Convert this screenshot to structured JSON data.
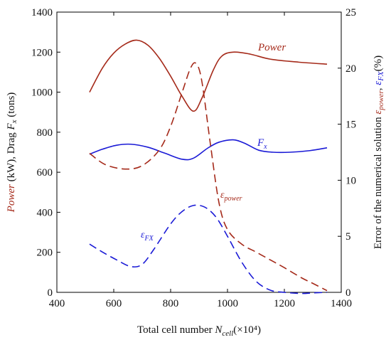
{
  "chart_data": {
    "type": "line",
    "xlabel": {
      "prefix": "Total cell number ",
      "var": "N",
      "sub": "cell",
      "suffix": "(×10⁴)"
    },
    "ylabel_left": {
      "p1": "Power",
      "p2": " (kW), Drag ",
      "p3": "F",
      "p4": "x",
      "p5": " (tons)"
    },
    "ylabel_right": {
      "p1": "Error of the numerical solution ",
      "p2": "ε",
      "p3": "power",
      "p4": ", ",
      "p5": "ε",
      "p6": "FX",
      "p7": "(%)"
    },
    "xlim": [
      400,
      1400
    ],
    "x_ticks": [
      400,
      600,
      800,
      1000,
      1200,
      1400
    ],
    "ylim_left": [
      0,
      1400
    ],
    "y_ticks_left": [
      0,
      200,
      400,
      600,
      800,
      1000,
      1200,
      1400
    ],
    "ylim_right": [
      0,
      25
    ],
    "y_ticks_right": [
      0,
      5,
      10,
      15,
      20,
      25
    ],
    "series": [
      {
        "name": "Power",
        "axis": "left",
        "style": "solid",
        "color": "#a52a1a",
        "points": [
          [
            515,
            1000
          ],
          [
            560,
            1120
          ],
          [
            600,
            1195
          ],
          [
            640,
            1240
          ],
          [
            680,
            1260
          ],
          [
            720,
            1235
          ],
          [
            760,
            1170
          ],
          [
            800,
            1080
          ],
          [
            840,
            980
          ],
          [
            880,
            905
          ],
          [
            910,
            970
          ],
          [
            950,
            1110
          ],
          [
            980,
            1180
          ],
          [
            1020,
            1200
          ],
          [
            1080,
            1190
          ],
          [
            1150,
            1165
          ],
          [
            1250,
            1150
          ],
          [
            1350,
            1140
          ]
        ]
      },
      {
        "name": "F",
        "sub": "x",
        "axis": "left",
        "style": "solid",
        "color": "#1a1ad6",
        "points": [
          [
            515,
            690
          ],
          [
            560,
            715
          ],
          [
            610,
            735
          ],
          [
            660,
            740
          ],
          [
            720,
            725
          ],
          [
            780,
            695
          ],
          [
            840,
            665
          ],
          [
            880,
            670
          ],
          [
            930,
            720
          ],
          [
            970,
            750
          ],
          [
            1020,
            762
          ],
          [
            1060,
            745
          ],
          [
            1110,
            710
          ],
          [
            1160,
            700
          ],
          [
            1220,
            700
          ],
          [
            1290,
            708
          ],
          [
            1350,
            722
          ]
        ]
      },
      {
        "name": "ε",
        "sub": "power",
        "axis": "right",
        "style": "dashed",
        "color": "#a52a1a",
        "points": [
          [
            515,
            12.4
          ],
          [
            570,
            11.4
          ],
          [
            640,
            11.0
          ],
          [
            700,
            11.3
          ],
          [
            760,
            12.7
          ],
          [
            800,
            14.8
          ],
          [
            840,
            17.8
          ],
          [
            870,
            20.0
          ],
          [
            890,
            20.4
          ],
          [
            910,
            18.8
          ],
          [
            940,
            13.2
          ],
          [
            970,
            8.0
          ],
          [
            1000,
            5.6
          ],
          [
            1050,
            4.3
          ],
          [
            1100,
            3.6
          ],
          [
            1150,
            2.9
          ],
          [
            1200,
            2.2
          ],
          [
            1260,
            1.3
          ],
          [
            1300,
            0.8
          ],
          [
            1350,
            0.15
          ]
        ]
      },
      {
        "name": "ε",
        "sub": "FX",
        "axis": "right",
        "style": "dashed",
        "color": "#1a1ad6",
        "points": [
          [
            515,
            4.3
          ],
          [
            560,
            3.6
          ],
          [
            610,
            2.9
          ],
          [
            660,
            2.3
          ],
          [
            700,
            2.5
          ],
          [
            740,
            3.8
          ],
          [
            800,
            6.1
          ],
          [
            840,
            7.2
          ],
          [
            880,
            7.75
          ],
          [
            920,
            7.6
          ],
          [
            960,
            6.7
          ],
          [
            1000,
            5.0
          ],
          [
            1050,
            2.7
          ],
          [
            1100,
            1.0
          ],
          [
            1150,
            0.2
          ],
          [
            1200,
            0.0
          ],
          [
            1260,
            -0.1
          ],
          [
            1300,
            -0.05
          ],
          [
            1350,
            0.0
          ]
        ]
      }
    ]
  },
  "colors": {
    "power": "#a52a1a",
    "drag": "#1a1ad6",
    "axis": "#000000"
  }
}
